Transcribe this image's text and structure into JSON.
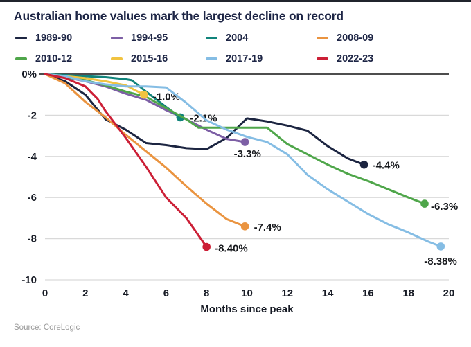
{
  "title": "Australian home values mark the largest decline on record",
  "source": "Source: CoreLogic",
  "colors": {
    "top_border": "#20242c",
    "title_text": "#1d2545",
    "axis_text": "#161a24",
    "grid_line": "#d9d9d9",
    "zero_line": "#4d4d4d",
    "end_label_text": "#16181c",
    "source_text": "#9a9a9a"
  },
  "chart_data": {
    "type": "line",
    "title": "Australian home values mark the largest decline on record",
    "xlabel": "Months since peak",
    "ylabel": "",
    "xlim": [
      0,
      20
    ],
    "ylim": [
      -10,
      0
    ],
    "grid": "horizontal",
    "legend_position": "top",
    "x_ticks": [
      0,
      2,
      4,
      6,
      8,
      10,
      12,
      14,
      16,
      18,
      20
    ],
    "y_ticks": [
      {
        "label": "0%",
        "value": 0
      },
      {
        "label": "-2",
        "value": -2
      },
      {
        "label": "-4",
        "value": -4
      },
      {
        "label": "-6",
        "value": -6
      },
      {
        "label": "-8",
        "value": -8
      },
      {
        "label": "-10",
        "value": -10
      }
    ],
    "series": [
      {
        "name": "1989-90",
        "color": "#1c2541",
        "end_label": "-4.4%",
        "label_dx": 12,
        "label_dy": 6,
        "points": [
          [
            0,
            0
          ],
          [
            1,
            -0.35
          ],
          [
            2,
            -1.0
          ],
          [
            3,
            -2.2
          ],
          [
            4,
            -2.7
          ],
          [
            5,
            -3.35
          ],
          [
            6,
            -3.45
          ],
          [
            7,
            -3.6
          ],
          [
            8,
            -3.65
          ],
          [
            9,
            -3.1
          ],
          [
            10,
            -2.15
          ],
          [
            11,
            -2.3
          ],
          [
            12,
            -2.5
          ],
          [
            13,
            -2.75
          ],
          [
            14,
            -3.5
          ],
          [
            15,
            -4.1
          ],
          [
            15.8,
            -4.4
          ]
        ]
      },
      {
        "name": "1994-95",
        "color": "#7d5fa5",
        "end_label": "-3.3%",
        "label_dx": -16,
        "label_dy": 22,
        "points": [
          [
            0,
            0
          ],
          [
            1,
            -0.15
          ],
          [
            2,
            -0.35
          ],
          [
            3,
            -0.6
          ],
          [
            4,
            -0.95
          ],
          [
            5,
            -1.25
          ],
          [
            6,
            -1.75
          ],
          [
            7,
            -2.2
          ],
          [
            8,
            -2.7
          ],
          [
            9,
            -3.15
          ],
          [
            9.9,
            -3.3
          ]
        ]
      },
      {
        "name": "2004",
        "color": "#11847b",
        "end_label": "-2.1%",
        "label_dx": 14,
        "label_dy": 6,
        "points": [
          [
            0,
            0
          ],
          [
            1,
            -0.05
          ],
          [
            2,
            -0.1
          ],
          [
            3,
            -0.15
          ],
          [
            4,
            -0.25
          ],
          [
            4.3,
            -0.3
          ],
          [
            5,
            -0.85
          ],
          [
            6,
            -1.6
          ],
          [
            6.7,
            -2.1
          ]
        ]
      },
      {
        "name": "2008-09",
        "color": "#ea9440",
        "end_label": "-7.4%",
        "label_dx": 13,
        "label_dy": 6,
        "points": [
          [
            0,
            0
          ],
          [
            1,
            -0.45
          ],
          [
            2,
            -1.35
          ],
          [
            3,
            -2.1
          ],
          [
            4,
            -2.95
          ],
          [
            5,
            -3.75
          ],
          [
            6,
            -4.55
          ],
          [
            7,
            -5.45
          ],
          [
            8,
            -6.3
          ],
          [
            9,
            -7.05
          ],
          [
            9.9,
            -7.4
          ]
        ]
      },
      {
        "name": "2010-12",
        "color": "#4fa64a",
        "end_label": "-6.3%",
        "label_dx": 9,
        "label_dy": 9,
        "points": [
          [
            0,
            0
          ],
          [
            1,
            -0.15
          ],
          [
            2,
            -0.3
          ],
          [
            3,
            -0.55
          ],
          [
            4,
            -0.85
          ],
          [
            5,
            -1.1
          ],
          [
            6,
            -1.65
          ],
          [
            7,
            -2.2
          ],
          [
            7.6,
            -2.6
          ],
          [
            11,
            -2.6
          ],
          [
            12,
            -3.4
          ],
          [
            13,
            -3.9
          ],
          [
            14,
            -4.4
          ],
          [
            15,
            -4.85
          ],
          [
            16,
            -5.2
          ],
          [
            17,
            -5.6
          ],
          [
            18,
            -6.0
          ],
          [
            18.8,
            -6.3
          ]
        ]
      },
      {
        "name": "2015-16",
        "color": "#f1c340",
        "end_label": "-1.0%",
        "label_dx": 13,
        "label_dy": 8,
        "points": [
          [
            0,
            0
          ],
          [
            1,
            -0.1
          ],
          [
            2,
            -0.2
          ],
          [
            3,
            -0.35
          ],
          [
            4,
            -0.55
          ],
          [
            4.9,
            -1.0
          ]
        ]
      },
      {
        "name": "2017-19",
        "color": "#85bde4",
        "end_label": "-8.38%",
        "label_dx": -24,
        "label_dy": 26,
        "points": [
          [
            0,
            0
          ],
          [
            1,
            -0.1
          ],
          [
            2,
            -0.35
          ],
          [
            3,
            -0.5
          ],
          [
            4,
            -0.6
          ],
          [
            5,
            -0.6
          ],
          [
            6,
            -0.65
          ],
          [
            7,
            -1.4
          ],
          [
            8,
            -2.25
          ],
          [
            9,
            -2.7
          ],
          [
            10,
            -3.05
          ],
          [
            11,
            -3.3
          ],
          [
            12,
            -3.9
          ],
          [
            13,
            -4.9
          ],
          [
            14,
            -5.6
          ],
          [
            15,
            -6.2
          ],
          [
            16,
            -6.8
          ],
          [
            17,
            -7.3
          ],
          [
            18,
            -7.7
          ],
          [
            19,
            -8.15
          ],
          [
            19.6,
            -8.38
          ]
        ]
      },
      {
        "name": "2022-23",
        "color": "#cc1f36",
        "end_label": "-8.40%",
        "label_dx": 12,
        "label_dy": 7,
        "points": [
          [
            0,
            0
          ],
          [
            1,
            -0.2
          ],
          [
            2,
            -0.6
          ],
          [
            2.6,
            -1.2
          ],
          [
            3,
            -1.8
          ],
          [
            4,
            -3.1
          ],
          [
            5,
            -4.5
          ],
          [
            6,
            -6.0
          ],
          [
            7,
            -7.0
          ],
          [
            8,
            -8.4
          ]
        ]
      }
    ]
  }
}
